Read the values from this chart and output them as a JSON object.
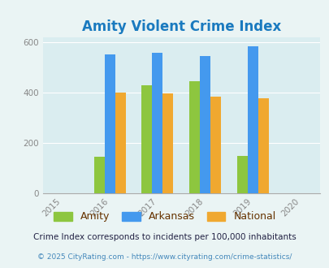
{
  "title": "Amity Violent Crime Index",
  "title_color": "#1a7abf",
  "years": [
    2016,
    2017,
    2018,
    2019
  ],
  "x_ticks": [
    2015,
    2016,
    2017,
    2018,
    2019,
    2020
  ],
  "amity": [
    145,
    430,
    447,
    148
  ],
  "arkansas": [
    553,
    558,
    547,
    585
  ],
  "national": [
    400,
    396,
    383,
    379
  ],
  "amity_color": "#8dc63f",
  "arkansas_color": "#4499ee",
  "national_color": "#f0a830",
  "bg_color": "#eaf4f4",
  "plot_bg": "#daedf0",
  "ylim": [
    0,
    620
  ],
  "yticks": [
    0,
    200,
    400,
    600
  ],
  "bar_width": 0.22,
  "legend_labels": [
    "Amity",
    "Arkansas",
    "National"
  ],
  "footnote1": "Crime Index corresponds to incidents per 100,000 inhabitants",
  "footnote2": "© 2025 CityRating.com - https://www.cityrating.com/crime-statistics/",
  "footnote1_color": "#222244",
  "footnote2_color": "#4488bb",
  "tick_color": "#888888",
  "legend_text_color": "#663300"
}
